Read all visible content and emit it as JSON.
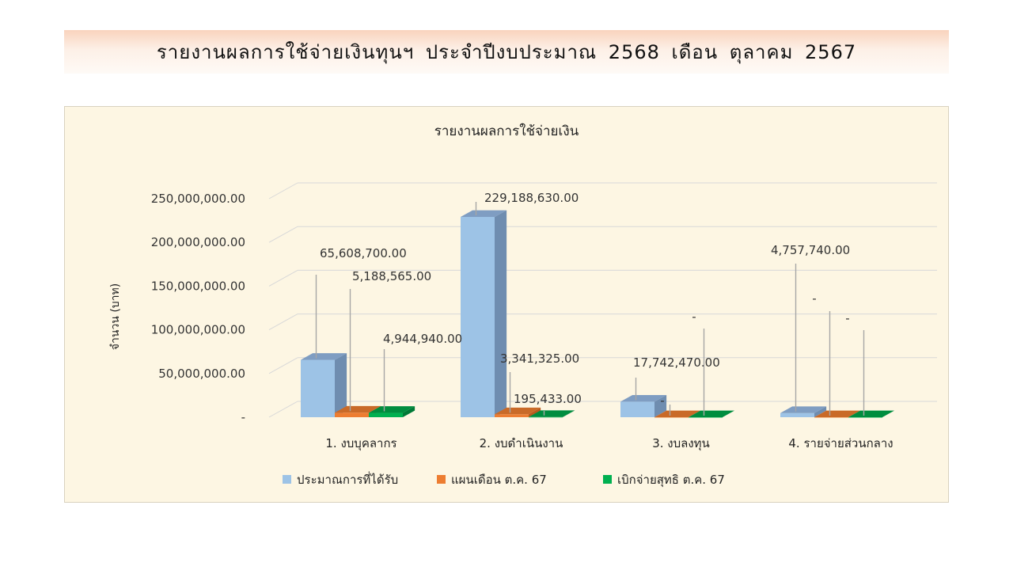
{
  "banner": {
    "title": "รายงานผลการใช้จ่ายเงินทุนฯ ประจำปีงบประมาณ 2568 เดือน ตุลาคม 2567"
  },
  "colors": {
    "series_blue": "#9dc3e6",
    "series_orange": "#ed7d31",
    "series_green": "#00b050",
    "panel_bg": "#fdf6e3",
    "banner_top": "#f9d3bd"
  },
  "chart_data": {
    "type": "bar",
    "title": "รายงานผลการใช้จ่ายเงิน",
    "ylabel": "จำนวน (บาท)",
    "xlabel": "",
    "ylim": [
      0,
      250000000
    ],
    "yticks": [
      0,
      50000000,
      100000000,
      150000000,
      200000000,
      250000000
    ],
    "ytick_labels": [
      "-",
      "50,000,000.00",
      "100,000,000.00",
      "150,000,000.00",
      "200,000,000.00",
      "250,000,000.00"
    ],
    "grid": true,
    "legend_position": "bottom",
    "categories": [
      "1. งบบุคลากร",
      "2. งบดำเนินงาน",
      "3. งบลงทุน",
      "4. รายจ่ายส่วนกลาง"
    ],
    "series": [
      {
        "name": "ประมาณการที่ได้รับ",
        "values": [
          65608700,
          229188630,
          17742470,
          4757740
        ],
        "labels": [
          "65,608,700.00",
          "229,188,630.00",
          "17,742,470.00",
          "4,757,740.00"
        ]
      },
      {
        "name": "แผนเดือน ต.ค. 67",
        "values": [
          5188565,
          3341325,
          0,
          0
        ],
        "labels": [
          "5,188,565.00",
          "3,341,325.00",
          "-",
          "-"
        ]
      },
      {
        "name": "เบิกจ่ายสุทธิ ต.ค. 67",
        "values": [
          4944940,
          195433,
          0,
          0
        ],
        "labels": [
          "4,944,940.00",
          "195,433.00",
          "-",
          "-"
        ]
      }
    ]
  }
}
